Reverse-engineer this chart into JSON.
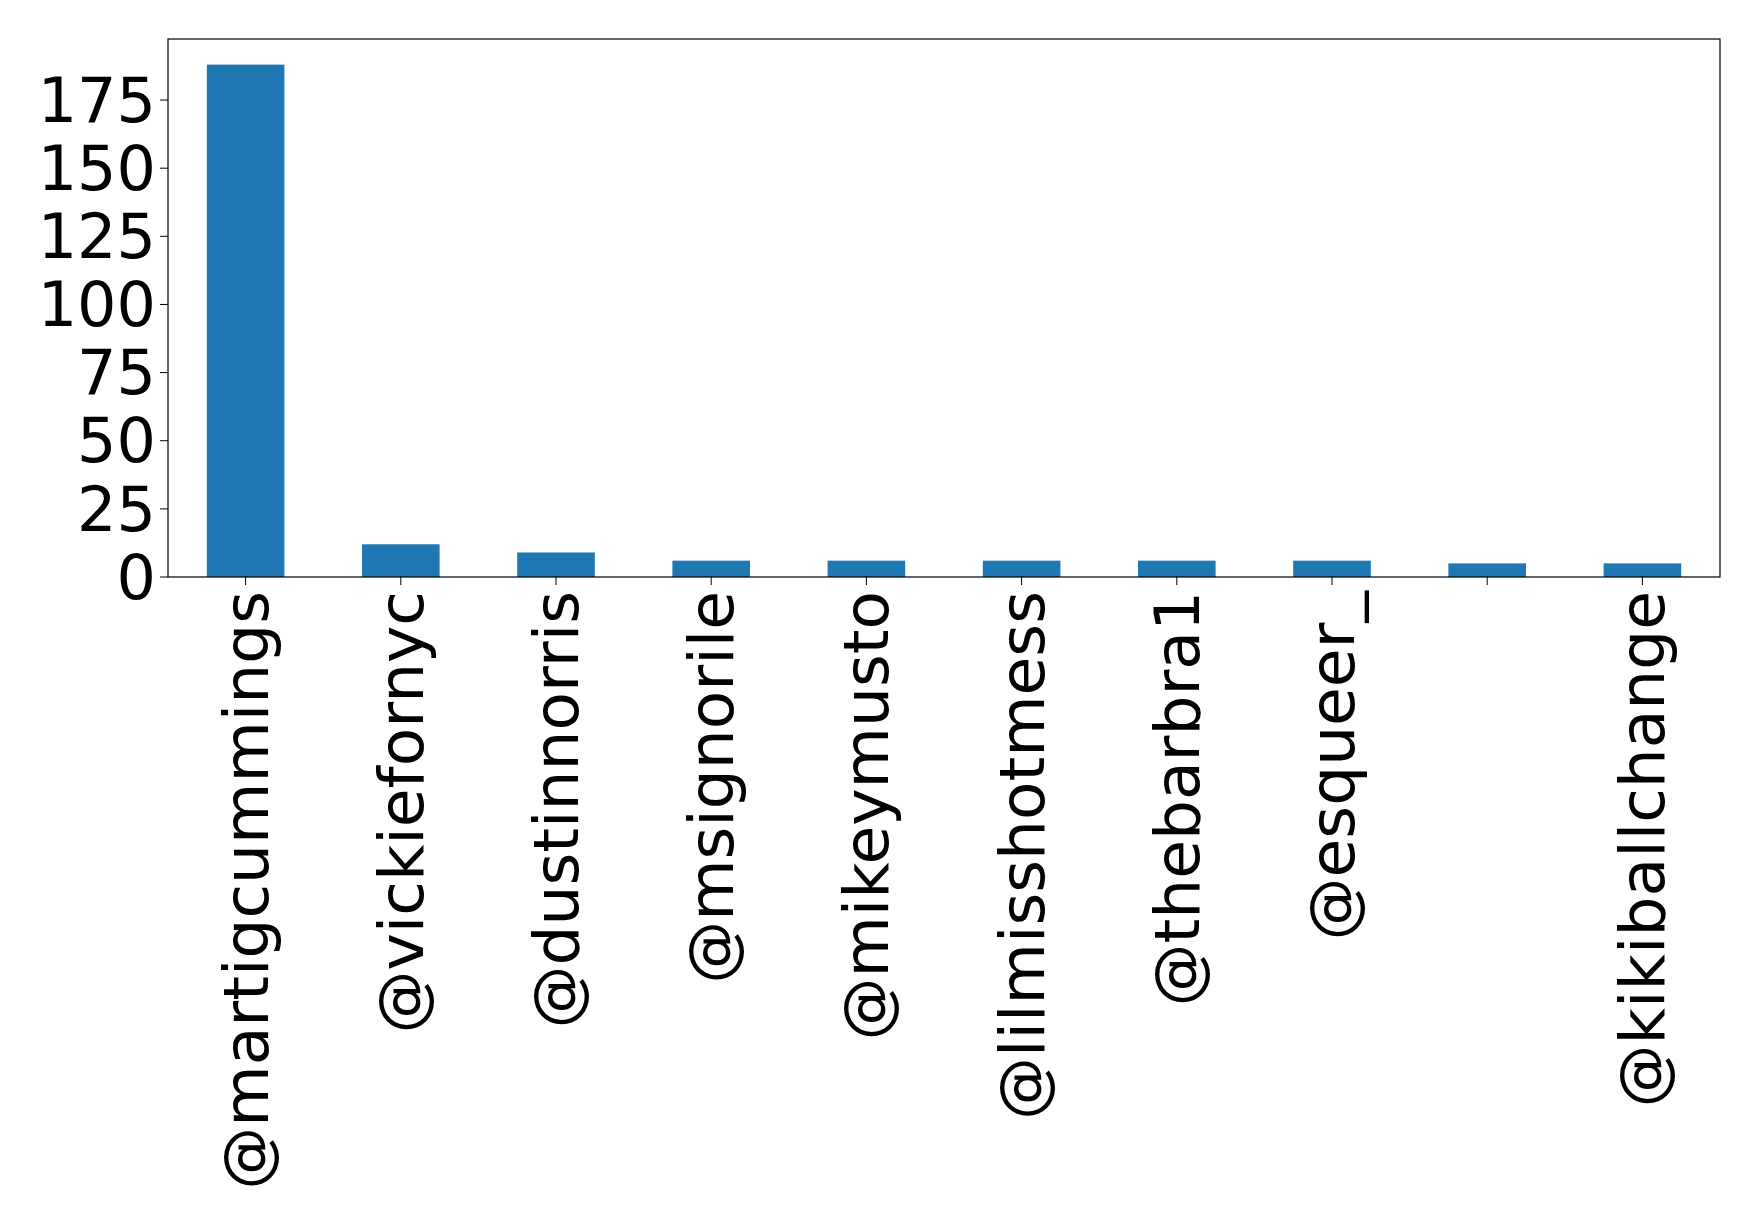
{
  "chart_data": {
    "type": "bar",
    "categories": [
      "@martigcummings",
      "@vickiefornyc",
      "@dustinnorris",
      "@msignorile",
      "@mikeymusto",
      "@lilmisshotmess",
      "@thebarbra1",
      "@esqueer_",
      null,
      "@kikiballchange"
    ],
    "values": [
      188,
      12,
      9,
      6,
      6,
      6,
      6,
      6,
      5,
      5
    ],
    "color": "#1f77b4",
    "ylim": [
      0,
      197.4
    ],
    "yticks": [
      0,
      25,
      50,
      75,
      100,
      125,
      150,
      175
    ],
    "grid": false
  }
}
